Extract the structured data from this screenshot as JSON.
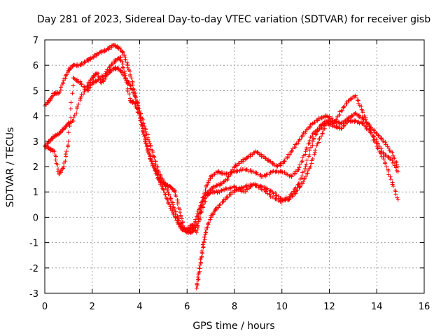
{
  "chart_data": {
    "type": "scatter",
    "title": "Day 281 of 2023, Sidereal Day-to-day VTEC variation (SDTVAR) for receiver gisb",
    "xlabel": "GPS time / hours",
    "ylabel": "SDTVAR / TECUs",
    "xlim": [
      0,
      16
    ],
    "ylim": [
      -3,
      7
    ],
    "xticks": [
      0,
      2,
      4,
      6,
      8,
      10,
      12,
      14,
      16
    ],
    "yticks": [
      -3,
      -2,
      -1,
      0,
      1,
      2,
      3,
      4,
      5,
      6,
      7
    ],
    "grid": true,
    "marker": "+",
    "color": "#ff0000",
    "series": [
      {
        "points": [
          [
            0.0,
            4.4
          ],
          [
            0.2,
            4.6
          ],
          [
            0.4,
            4.9
          ],
          [
            0.6,
            4.9
          ],
          [
            0.8,
            5.4
          ],
          [
            1.0,
            5.8
          ],
          [
            1.2,
            6.0
          ],
          [
            1.5,
            6.0
          ],
          [
            1.8,
            6.2
          ],
          [
            2.0,
            6.3
          ],
          [
            2.3,
            6.5
          ],
          [
            2.6,
            6.6
          ],
          [
            2.9,
            6.8
          ],
          [
            3.1,
            6.7
          ],
          [
            3.3,
            6.5
          ],
          [
            3.5,
            6.0
          ],
          [
            3.7,
            5.3
          ],
          [
            3.9,
            4.5
          ],
          [
            4.1,
            3.6
          ],
          [
            4.3,
            2.8
          ],
          [
            4.5,
            2.2
          ],
          [
            4.7,
            1.8
          ],
          [
            4.9,
            1.4
          ],
          [
            5.1,
            1.3
          ],
          [
            5.3,
            1.2
          ],
          [
            5.5,
            1.0
          ],
          [
            5.7,
            0.2
          ],
          [
            5.9,
            -0.5
          ],
          [
            6.1,
            -0.5
          ],
          [
            6.3,
            -0.3
          ],
          [
            6.5,
            0.3
          ],
          [
            6.7,
            0.8
          ],
          [
            6.9,
            1.0
          ],
          [
            7.1,
            1.2
          ],
          [
            7.4,
            1.3
          ],
          [
            7.7,
            1.5
          ],
          [
            8.0,
            2.0
          ],
          [
            8.3,
            2.2
          ],
          [
            8.6,
            2.4
          ],
          [
            8.9,
            2.6
          ],
          [
            9.2,
            2.4
          ],
          [
            9.5,
            2.2
          ],
          [
            9.8,
            2.0
          ],
          [
            10.1,
            2.2
          ],
          [
            10.4,
            2.6
          ],
          [
            10.7,
            3.0
          ],
          [
            11.0,
            3.4
          ],
          [
            11.3,
            3.7
          ],
          [
            11.6,
            3.9
          ],
          [
            11.9,
            4.0
          ],
          [
            12.2,
            3.8
          ],
          [
            12.5,
            3.7
          ],
          [
            12.8,
            3.9
          ],
          [
            13.1,
            4.1
          ],
          [
            13.4,
            3.9
          ],
          [
            13.7,
            3.6
          ],
          [
            14.0,
            3.3
          ],
          [
            14.3,
            3.0
          ],
          [
            14.6,
            2.6
          ],
          [
            14.9,
            2.0
          ]
        ]
      },
      {
        "points": [
          [
            0.0,
            2.8
          ],
          [
            0.2,
            3.0
          ],
          [
            0.4,
            3.2
          ],
          [
            0.6,
            3.3
          ],
          [
            0.8,
            3.5
          ],
          [
            1.0,
            3.7
          ],
          [
            1.2,
            3.8
          ],
          [
            1.5,
            4.7
          ],
          [
            1.8,
            5.2
          ],
          [
            2.0,
            5.5
          ],
          [
            2.2,
            5.7
          ],
          [
            2.4,
            5.3
          ],
          [
            2.6,
            5.6
          ],
          [
            2.8,
            5.8
          ],
          [
            3.0,
            5.9
          ],
          [
            3.2,
            5.8
          ],
          [
            3.4,
            5.5
          ],
          [
            3.6,
            5.2
          ],
          [
            3.8,
            4.8
          ],
          [
            4.0,
            4.2
          ],
          [
            4.2,
            3.6
          ],
          [
            4.4,
            3.0
          ],
          [
            4.6,
            2.4
          ],
          [
            4.8,
            1.8
          ],
          [
            5.0,
            1.4
          ],
          [
            5.2,
            1.0
          ],
          [
            5.4,
            0.5
          ],
          [
            5.6,
            0.0
          ],
          [
            5.8,
            -0.4
          ],
          [
            6.0,
            -0.6
          ],
          [
            6.2,
            -0.6
          ],
          [
            6.4,
            -0.3
          ],
          [
            6.6,
            0.4
          ],
          [
            6.8,
            1.2
          ],
          [
            7.0,
            1.6
          ],
          [
            7.3,
            1.8
          ],
          [
            7.6,
            1.7
          ],
          [
            8.0,
            1.8
          ],
          [
            8.4,
            1.9
          ],
          [
            8.8,
            1.8
          ],
          [
            9.2,
            1.6
          ],
          [
            9.6,
            1.8
          ],
          [
            10.0,
            1.8
          ],
          [
            10.4,
            1.6
          ],
          [
            10.7,
            1.9
          ],
          [
            11.0,
            2.6
          ],
          [
            11.3,
            3.3
          ],
          [
            11.6,
            3.5
          ],
          [
            11.9,
            3.7
          ],
          [
            12.2,
            3.6
          ],
          [
            12.5,
            3.5
          ],
          [
            12.8,
            3.8
          ],
          [
            13.1,
            3.8
          ],
          [
            13.4,
            3.7
          ],
          [
            13.7,
            3.4
          ],
          [
            14.0,
            3.0
          ],
          [
            14.3,
            2.5
          ],
          [
            14.6,
            2.3
          ],
          [
            14.9,
            1.8
          ]
        ]
      },
      {
        "points": [
          [
            0.0,
            2.8
          ],
          [
            0.2,
            2.7
          ],
          [
            0.4,
            2.6
          ],
          [
            0.6,
            1.7
          ],
          [
            0.8,
            2.0
          ],
          [
            1.0,
            3.0
          ],
          [
            1.2,
            5.5
          ],
          [
            1.5,
            5.3
          ],
          [
            1.8,
            5.0
          ],
          [
            2.0,
            5.3
          ],
          [
            2.2,
            5.4
          ],
          [
            2.5,
            5.6
          ],
          [
            2.8,
            6.0
          ],
          [
            3.0,
            6.2
          ],
          [
            3.2,
            6.3
          ],
          [
            3.4,
            5.6
          ],
          [
            3.6,
            4.6
          ],
          [
            3.8,
            4.5
          ],
          [
            4.0,
            4.0
          ],
          [
            4.2,
            3.2
          ],
          [
            4.4,
            2.5
          ],
          [
            4.6,
            2.0
          ],
          [
            4.8,
            1.5
          ],
          [
            5.0,
            1.1
          ],
          [
            5.2,
            0.6
          ],
          [
            5.4,
            0.2
          ],
          [
            5.6,
            -0.2
          ],
          [
            5.8,
            -0.5
          ],
          [
            6.0,
            -0.5
          ],
          [
            6.2,
            -0.3
          ],
          [
            6.4,
            -0.6
          ],
          [
            6.6,
            0.2
          ],
          [
            6.8,
            0.8
          ],
          [
            7.0,
            1.0
          ],
          [
            7.3,
            1.0
          ],
          [
            7.6,
            1.1
          ],
          [
            8.0,
            1.2
          ],
          [
            8.4,
            1.0
          ],
          [
            8.8,
            1.3
          ],
          [
            9.2,
            1.1
          ],
          [
            9.6,
            0.8
          ],
          [
            10.0,
            0.6
          ],
          [
            10.4,
            0.9
          ],
          [
            10.7,
            1.3
          ],
          [
            11.0,
            2.0
          ],
          [
            11.3,
            3.0
          ],
          [
            11.6,
            3.6
          ],
          [
            11.9,
            3.8
          ],
          [
            12.2,
            3.7
          ],
          [
            12.5,
            4.2
          ],
          [
            12.8,
            4.6
          ],
          [
            13.1,
            4.8
          ],
          [
            13.4,
            4.2
          ],
          [
            13.7,
            3.5
          ],
          [
            14.0,
            2.8
          ],
          [
            14.3,
            2.3
          ],
          [
            14.6,
            1.5
          ],
          [
            14.9,
            0.7
          ]
        ]
      },
      {
        "points": [
          [
            6.4,
            -2.8
          ],
          [
            6.5,
            -2.2
          ],
          [
            6.6,
            -1.6
          ],
          [
            6.7,
            -1.0
          ],
          [
            6.8,
            -0.5
          ],
          [
            7.0,
            0.0
          ],
          [
            7.2,
            0.3
          ],
          [
            7.5,
            0.6
          ],
          [
            7.8,
            0.9
          ],
          [
            8.1,
            1.1
          ],
          [
            8.4,
            1.2
          ],
          [
            8.8,
            1.3
          ],
          [
            9.2,
            1.2
          ],
          [
            9.6,
            1.0
          ],
          [
            10.0,
            0.7
          ],
          [
            10.3,
            0.7
          ],
          [
            10.6,
            1.0
          ],
          [
            10.9,
            1.4
          ],
          [
            11.2,
            2.0
          ],
          [
            11.5,
            2.9
          ],
          [
            11.8,
            3.5
          ]
        ]
      }
    ]
  }
}
